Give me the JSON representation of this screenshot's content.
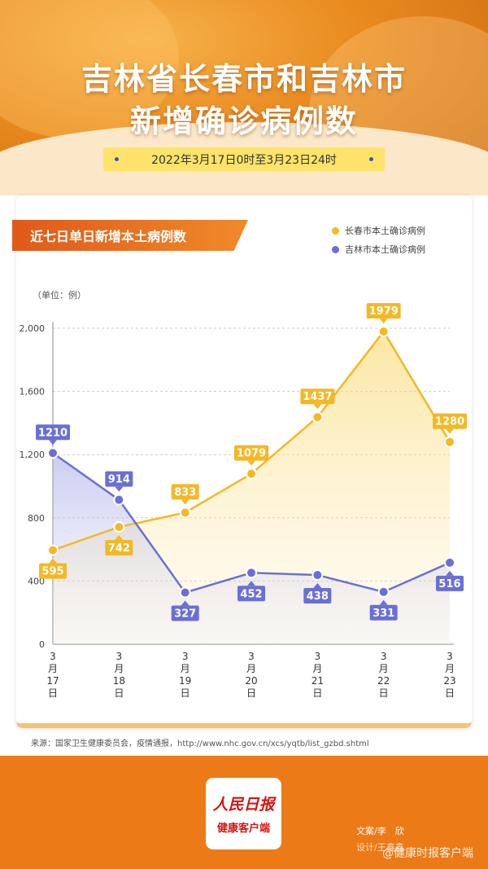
{
  "header": {
    "title_line1": "吉林省长春市和吉林市",
    "title_line2": "新增确诊病例数",
    "date_range": "2022年3月17日0时至3月23日24时"
  },
  "panel": {
    "tag": "近七日单日新增本土病例数",
    "unit": "（单位：例）"
  },
  "colors": {
    "changchun": "#f5b824",
    "jilin": "#6a6fd6",
    "accent": "#ec7a17"
  },
  "chart_data": {
    "type": "line",
    "categories": [
      "3月17日",
      "3月18日",
      "3月19日",
      "3月20日",
      "3月21日",
      "3月22日",
      "3月23日"
    ],
    "category_lines": [
      [
        "3",
        "月",
        "17",
        "日"
      ],
      [
        "3",
        "月",
        "18",
        "日"
      ],
      [
        "3",
        "月",
        "19",
        "日"
      ],
      [
        "3",
        "月",
        "20",
        "日"
      ],
      [
        "3",
        "月",
        "21",
        "日"
      ],
      [
        "3",
        "月",
        "22",
        "日"
      ],
      [
        "3",
        "月",
        "23",
        "日"
      ]
    ],
    "series": [
      {
        "name": "长春市本土确诊病例",
        "values": [
          595,
          742,
          833,
          1079,
          1437,
          1979,
          1280
        ]
      },
      {
        "name": "吉林市本土确诊病例",
        "values": [
          1210,
          914,
          327,
          452,
          438,
          331,
          516
        ]
      }
    ],
    "ylim": [
      0,
      2000
    ],
    "yticks": [
      "0",
      "400",
      "800",
      "1,200",
      "1,600",
      "2,000"
    ],
    "ytick_values": [
      0,
      400,
      800,
      1200,
      1600,
      2000
    ],
    "grid": true,
    "legend": "top-right"
  },
  "source": "来源：国家卫生健康委员会，疫情通报，http://www.nhc.gov.cn/xcs/yqtb/list_gzbd.shtml",
  "footer": {
    "logo_line1": "人民日报",
    "logo_line2": "健康客户端",
    "credit1": "文案/李　欣",
    "credit2": "设计/王鑫鑫",
    "watermark": "@健康时报客户端"
  }
}
